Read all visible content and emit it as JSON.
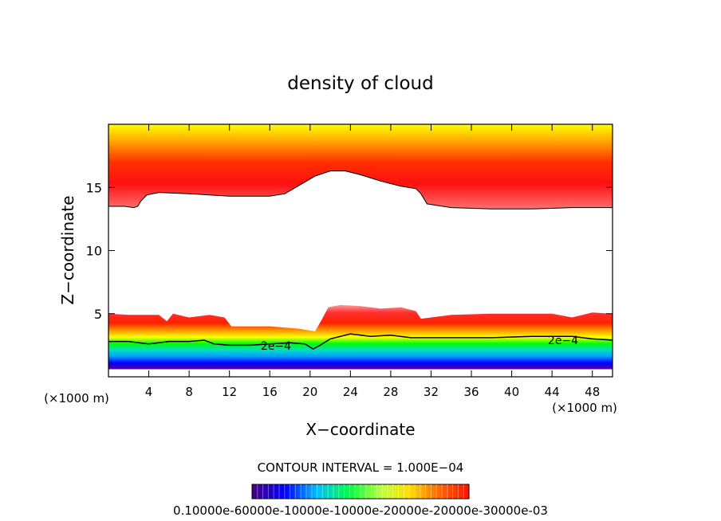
{
  "chart_data": {
    "type": "heatmap",
    "title": "density of cloud",
    "xlabel": "X−coordinate",
    "ylabel": "Z−coordinate",
    "x_unit_left": "(×1000 m)",
    "x_unit_right": "(×1000 m)",
    "xlim": [
      0,
      50
    ],
    "ylim": [
      0,
      20
    ],
    "xticks": [
      4,
      8,
      12,
      16,
      20,
      24,
      28,
      32,
      36,
      40,
      44,
      48
    ],
    "yticks": [
      5,
      10,
      15
    ],
    "x_tick_labels": [
      "4",
      "8",
      "12",
      "16",
      "20",
      "24",
      "28",
      "32",
      "36",
      "40",
      "44",
      "48"
    ],
    "y_tick_labels": [
      "5",
      "10",
      "15"
    ],
    "contour_interval_text": "CONTOUR INTERVAL = 1.000E−04",
    "contour_line_label": "2e−4",
    "contour_line_level": 0.0002,
    "colorbar_min": 0.0001,
    "colorbar_max": 0.0003,
    "colorbar_tick_text": "0.10000e-60000e-10000e-10000e-20000e-20000e-30000e-03",
    "colors": {
      "low": "#3a0080",
      "mid_low": "#0000ff",
      "mid": "#00ff00",
      "mid_high": "#ffff00",
      "high": "#ff0000",
      "weak": "#ffd0d0",
      "frame": "#000000"
    },
    "upper_layer": {
      "top_z": 20,
      "bottom_z_x": [
        0,
        1.6,
        2.5,
        2.9,
        3.2,
        3.8,
        5.0,
        8.0,
        12.0,
        16.0,
        17.5,
        19.0,
        20.5,
        22.0,
        23.5,
        25.0,
        27.0,
        29.0,
        30.5,
        31.0,
        31.6,
        34.0,
        38.0,
        42.0,
        46.0,
        50.0
      ],
      "bottom_z": [
        13.5,
        13.5,
        13.4,
        13.5,
        13.9,
        14.4,
        14.6,
        14.5,
        14.3,
        14.3,
        14.5,
        15.2,
        15.9,
        16.3,
        16.3,
        16.0,
        15.5,
        15.1,
        14.9,
        14.5,
        13.7,
        13.4,
        13.3,
        13.3,
        13.4,
        13.4
      ]
    },
    "lower_layer": {
      "top_z_x": [
        0,
        2,
        4,
        5,
        5.8,
        6.4,
        8,
        10,
        11.5,
        12.2,
        16,
        19,
        20.5,
        21.2,
        21.8,
        23,
        25,
        27,
        29,
        30.5,
        31,
        34,
        38,
        42,
        44,
        46,
        48,
        50
      ],
      "top_z": [
        5.0,
        4.9,
        4.9,
        4.9,
        4.4,
        5.0,
        4.7,
        4.9,
        4.7,
        4.0,
        4.0,
        3.8,
        3.6,
        4.6,
        5.5,
        5.7,
        5.6,
        5.4,
        5.5,
        5.2,
        4.6,
        4.9,
        5.0,
        5.0,
        5.0,
        4.7,
        5.1,
        5.0
      ],
      "bottom_z": 0.6,
      "contour_2e4_x": [
        0,
        2,
        4,
        6,
        8,
        9.5,
        10.5,
        12,
        14,
        16,
        18,
        19.5,
        20.3,
        21.0,
        22,
        24,
        26,
        28,
        30,
        32,
        34,
        38,
        42,
        46,
        48,
        50
      ],
      "contour_2e4_z": [
        2.8,
        2.8,
        2.6,
        2.8,
        2.8,
        2.9,
        2.6,
        2.5,
        2.5,
        2.6,
        2.7,
        2.6,
        2.2,
        2.5,
        3.0,
        3.4,
        3.2,
        3.3,
        3.1,
        3.1,
        3.1,
        3.1,
        3.2,
        3.2,
        3.0,
        2.9
      ]
    }
  }
}
